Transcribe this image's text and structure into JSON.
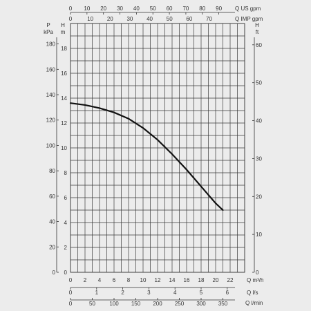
{
  "chart_data": {
    "type": "line",
    "title": "",
    "grid": true,
    "series": [
      {
        "x_unit": "m3/h",
        "y_unit": "m",
        "points": [
          [
            0,
            13.6
          ],
          [
            2,
            13.45
          ],
          [
            4,
            13.2
          ],
          [
            6,
            12.85
          ],
          [
            8,
            12.35
          ],
          [
            10,
            11.6
          ],
          [
            12,
            10.65
          ],
          [
            14,
            9.5
          ],
          [
            16,
            8.25
          ],
          [
            18,
            6.9
          ],
          [
            20,
            5.55
          ],
          [
            21,
            5.0
          ]
        ]
      }
    ],
    "axes": {
      "x_m3h": {
        "label": "Q m³/h",
        "range": [
          0,
          24
        ],
        "ticks": [
          "0",
          "2",
          "4",
          "6",
          "8",
          "10",
          "12",
          "14",
          "16",
          "18",
          "20",
          "22"
        ]
      },
      "x_ls": {
        "label": "Q l/s",
        "ticks": [
          "0",
          "1",
          "2",
          "3",
          "4",
          "5",
          "6"
        ]
      },
      "x_lmin": {
        "label": "Q l/min",
        "ticks": [
          "0",
          "50",
          "100",
          "150",
          "200",
          "250",
          "300",
          "350"
        ]
      },
      "x_us_gpm": {
        "label": "Q US gpm",
        "ticks": [
          "0",
          "10",
          "20",
          "30",
          "40",
          "50",
          "60",
          "70",
          "80",
          "90"
        ]
      },
      "x_imp_gpm": {
        "label": "Q IMP gpm",
        "ticks": [
          "0",
          "10",
          "20",
          "30",
          "40",
          "50",
          "60",
          "70"
        ]
      },
      "y_m": {
        "label_top": "H",
        "label_bottom": "m",
        "range": [
          0,
          20
        ],
        "ticks": [
          "0",
          "2",
          "4",
          "6",
          "8",
          "10",
          "12",
          "14",
          "16",
          "18"
        ]
      },
      "y_kpa": {
        "label_top": "P",
        "label_bottom": "kPa",
        "ticks": [
          "0",
          "20",
          "40",
          "60",
          "80",
          "100",
          "120",
          "140",
          "160",
          "180"
        ]
      },
      "y_ft": {
        "label_top": "H",
        "label_bottom": "ft",
        "ticks": [
          "0",
          "10",
          "20",
          "30",
          "40",
          "50",
          "60"
        ]
      }
    }
  }
}
